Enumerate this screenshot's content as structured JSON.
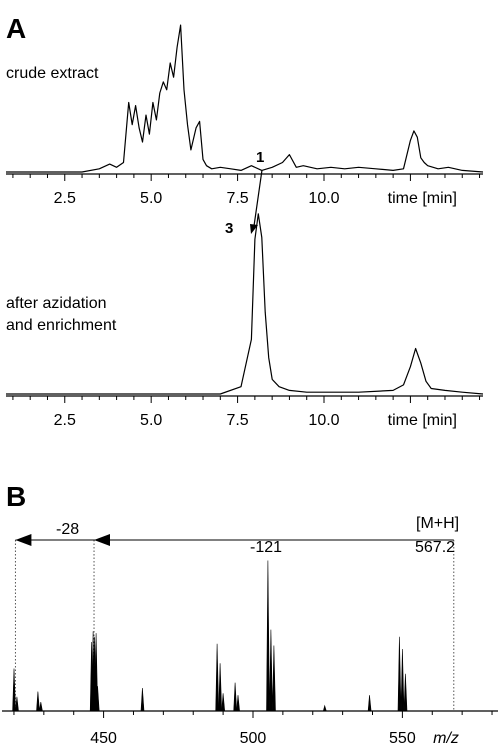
{
  "panel_a": {
    "letter": "A",
    "upper_label": "crude extract",
    "lower_label_line1": "after azidation",
    "lower_label_line2": "and enrichment",
    "marker_1": "1",
    "marker_3": "3"
  },
  "panel_b": {
    "letter": "B",
    "ion_label": "[M+H]",
    "ion_mz": "567.2",
    "loss_1": "-28",
    "loss_2": "-121"
  },
  "chart_data": [
    {
      "type": "line",
      "panel": "A (upper)",
      "title": "",
      "xlabel": "time [min]",
      "ylabel": "",
      "xlim": [
        0.8,
        14.6
      ],
      "ylim": [
        0,
        100
      ],
      "x_ticks": [
        "2.5",
        "5.0",
        "7.5",
        "10.0"
      ],
      "x_tick_values": [
        2.5,
        5.0,
        7.5,
        10.0
      ],
      "grid": false,
      "series": [
        {
          "x": [
            0.8,
            2.0,
            3.0,
            3.5,
            3.8,
            4.0,
            4.2,
            4.35,
            4.45,
            4.55,
            4.65,
            4.75,
            4.85,
            4.95,
            5.05,
            5.15,
            5.25,
            5.35,
            5.45,
            5.55,
            5.65,
            5.75,
            5.85,
            5.95,
            6.05,
            6.15,
            6.3,
            6.4,
            6.5,
            6.6,
            6.75,
            7.0,
            7.3,
            7.6,
            7.9,
            8.2,
            8.5,
            8.8,
            9.0,
            9.2,
            9.4,
            9.8,
            10.2,
            10.6,
            11.0,
            11.5,
            12.0,
            12.3,
            12.5,
            12.6,
            12.7,
            12.8,
            12.9,
            13.0,
            13.3,
            13.6,
            14.0,
            14.6
          ],
          "y": [
            0,
            0,
            0,
            2,
            5,
            3,
            6,
            44,
            30,
            42,
            28,
            19,
            36,
            24,
            44,
            33,
            50,
            57,
            52,
            69,
            60,
            79,
            93,
            52,
            30,
            14,
            28,
            32,
            8,
            4,
            2,
            3,
            2,
            1,
            4,
            1,
            3,
            6,
            11,
            3,
            4,
            2,
            3,
            2,
            3,
            2,
            1,
            2,
            20,
            26,
            22,
            9,
            6,
            4,
            2,
            3,
            1,
            0
          ]
        }
      ]
    },
    {
      "type": "line",
      "panel": "A (lower)",
      "title": "",
      "xlabel": "time [min]",
      "ylabel": "",
      "xlim": [
        0.8,
        14.6
      ],
      "ylim": [
        0,
        100
      ],
      "x_ticks": [
        "2.5",
        "5.0",
        "7.5",
        "10.0"
      ],
      "x_tick_values": [
        2.5,
        5.0,
        7.5,
        10.0
      ],
      "grid": false,
      "series": [
        {
          "x": [
            0.8,
            5.0,
            7.0,
            7.6,
            7.9,
            8.0,
            8.1,
            8.2,
            8.3,
            8.4,
            8.5,
            8.7,
            9.0,
            9.5,
            10.0,
            11.0,
            12.0,
            12.3,
            12.5,
            12.65,
            12.8,
            12.95,
            13.1,
            13.5,
            14.0,
            14.6
          ],
          "y": [
            0,
            0,
            0,
            4,
            30,
            85,
            99,
            86,
            45,
            20,
            8,
            4,
            2,
            1,
            1,
            1,
            2,
            5,
            15,
            25,
            17,
            7,
            3,
            2,
            1,
            0
          ]
        }
      ]
    },
    {
      "type": "bar",
      "panel": "B",
      "title": "",
      "xlabel": "m/z",
      "ylabel": "",
      "xlim": [
        416,
        582
      ],
      "ylim": [
        0,
        100
      ],
      "x_ticks": [
        "450",
        "500",
        "550"
      ],
      "x_tick_values": [
        450,
        500,
        550
      ],
      "grid": false,
      "x": [
        420,
        421,
        428,
        429,
        446,
        446.5,
        447,
        447.5,
        448,
        463,
        488,
        489,
        490,
        494,
        495,
        505,
        506,
        507,
        524,
        539,
        549,
        550,
        551
      ],
      "values": [
        24,
        8,
        11,
        5,
        39,
        45,
        42,
        44,
        14,
        13,
        38,
        27,
        10,
        16,
        9,
        85,
        46,
        37,
        3,
        9,
        42,
        35,
        21
      ]
    }
  ]
}
